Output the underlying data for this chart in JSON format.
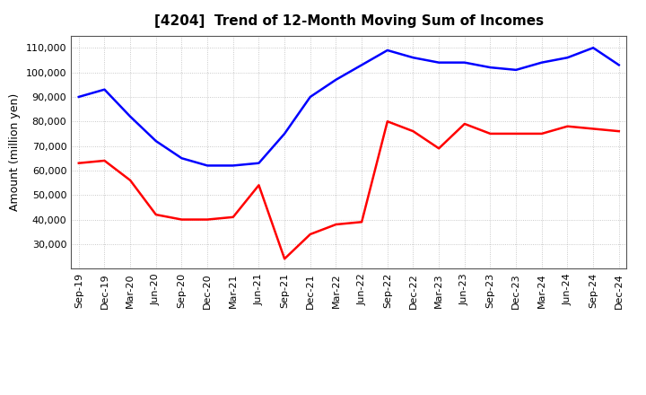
{
  "title": "[4204]  Trend of 12-Month Moving Sum of Incomes",
  "ylabel": "Amount (million yen)",
  "x_labels": [
    "Sep-19",
    "Dec-19",
    "Mar-20",
    "Jun-20",
    "Sep-20",
    "Dec-20",
    "Mar-21",
    "Jun-21",
    "Sep-21",
    "Dec-21",
    "Mar-22",
    "Jun-22",
    "Sep-22",
    "Dec-22",
    "Mar-23",
    "Jun-23",
    "Sep-23",
    "Dec-23",
    "Mar-24",
    "Jun-24",
    "Sep-24",
    "Dec-24"
  ],
  "ordinary_income": [
    90000,
    93000,
    82000,
    72000,
    65000,
    62000,
    62000,
    63000,
    75000,
    90000,
    97000,
    103000,
    109000,
    106000,
    104000,
    104000,
    102000,
    101000,
    104000,
    106000,
    110000,
    103000
  ],
  "net_income": [
    63000,
    64000,
    56000,
    42000,
    40000,
    40000,
    41000,
    54000,
    24000,
    34000,
    38000,
    39000,
    80000,
    76000,
    69000,
    79000,
    75000,
    75000,
    75000,
    78000,
    77000,
    76000
  ],
  "ordinary_color": "#0000FF",
  "net_color": "#FF0000",
  "background_color": "#FFFFFF",
  "plot_bg_color": "#FFFFFF",
  "grid_color": "#AAAAAA",
  "ylim_min": 20000,
  "ylim_max": 115000,
  "yticks": [
    30000,
    40000,
    50000,
    60000,
    70000,
    80000,
    90000,
    100000,
    110000
  ],
  "title_fontsize": 11,
  "axis_label_fontsize": 9,
  "tick_fontsize": 8,
  "legend_fontsize": 9,
  "line_width": 1.8
}
